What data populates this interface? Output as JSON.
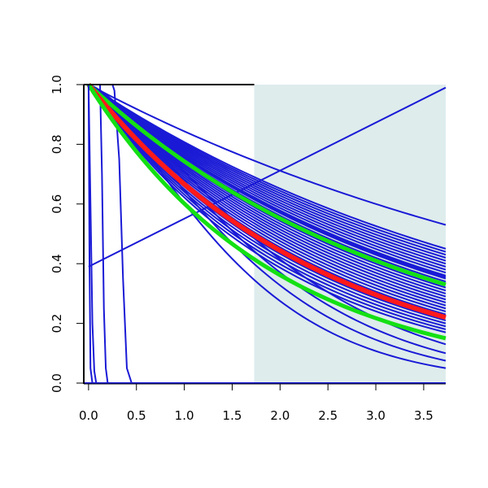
{
  "chart_data": {
    "type": "line",
    "title": "",
    "xlabel": "",
    "ylabel": "",
    "xlim": [
      -0.05,
      3.73
    ],
    "ylim": [
      0.0,
      1.0
    ],
    "x_ticks": [
      "0.0",
      "0.5",
      "1.0",
      "1.5",
      "2.0",
      "2.5",
      "3.0",
      "3.5"
    ],
    "y_ticks": [
      "0.0",
      "0.2",
      "0.4",
      "0.6",
      "0.8",
      "1.0"
    ],
    "grid": false,
    "legend": "none",
    "shaded_region": {
      "x_from": 1.73,
      "x_to": 3.73,
      "color": "#deecec"
    },
    "colors": {
      "ensemble": "#1a1ad6",
      "highlight_red": "#ff1a1a",
      "highlight_green": "#14e014"
    },
    "series": [
      {
        "color": "blue",
        "kind": "linear",
        "points": [
          [
            0.0,
            0.39
          ],
          [
            3.73,
            0.99
          ]
        ]
      },
      {
        "color": "blue",
        "kind": "sigmoid",
        "x": [
          0.0,
          0.02,
          0.04,
          0.06,
          0.08
        ],
        "y": [
          1.0,
          0.6,
          0.2,
          0.04,
          0.0
        ]
      },
      {
        "color": "blue",
        "kind": "sigmoid",
        "x": [
          0.12,
          0.14,
          0.16,
          0.18,
          0.2
        ],
        "y": [
          1.0,
          0.7,
          0.25,
          0.05,
          0.0
        ]
      },
      {
        "color": "blue",
        "kind": "sigmoid",
        "x": [
          0.27,
          0.32,
          0.36,
          0.4,
          0.45
        ],
        "y": [
          0.98,
          0.75,
          0.35,
          0.05,
          0.0
        ]
      },
      {
        "color": "blue",
        "kind": "decay",
        "y_at_end": [
          0.53,
          0.45,
          0.44,
          0.43,
          0.42,
          0.41,
          0.4,
          0.39,
          0.38,
          0.37,
          0.36,
          0.355,
          0.35,
          0.34,
          0.33,
          0.32,
          0.31,
          0.3,
          0.29,
          0.28,
          0.27,
          0.26,
          0.25,
          0.24,
          0.23,
          0.22,
          0.21,
          0.2,
          0.19,
          0.18,
          0.17
        ]
      },
      {
        "color": "blue",
        "kind": "convex-decay",
        "y_at_end": [
          0.13,
          0.1,
          0.075,
          0.05
        ]
      },
      {
        "color": "green",
        "kind": "decay",
        "y_at_end": 0.33
      },
      {
        "color": "red",
        "kind": "decay",
        "y_at_end": 0.22
      },
      {
        "color": "green",
        "kind": "decay",
        "y_at_end": 0.15
      }
    ]
  }
}
